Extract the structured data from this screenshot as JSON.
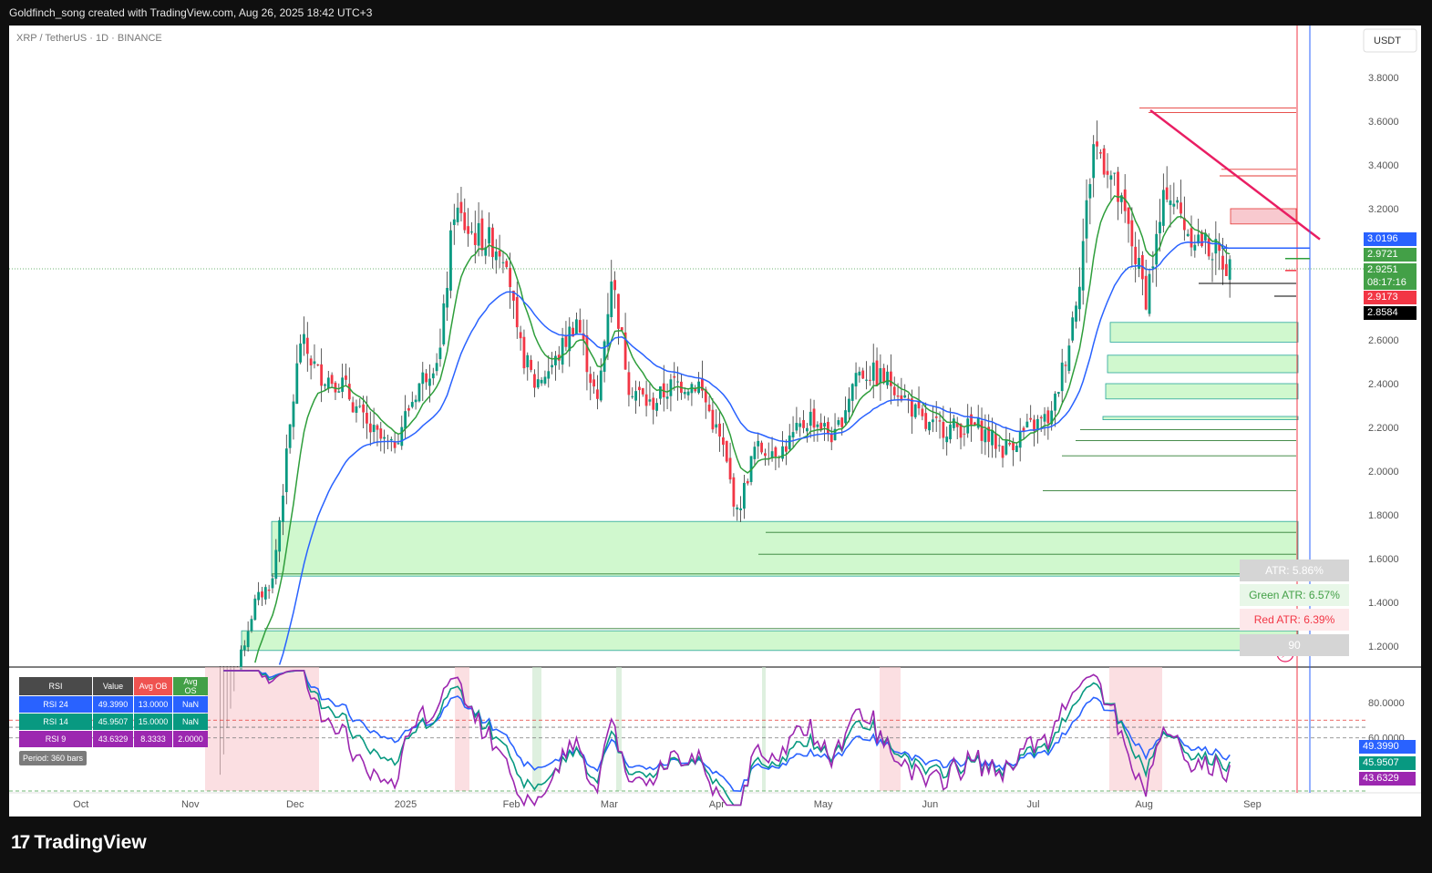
{
  "header": {
    "text": "Goldfinch_song created with TradingView.com, Aug 26, 2025 18:42 UTC+3"
  },
  "footer": {
    "brand": "TradingView",
    "logo_mark": "17"
  },
  "symbol": {
    "title": "XRP / TetherUS · 1D · BINANCE",
    "currency": "USDT"
  },
  "colors": {
    "up": "#089981",
    "down": "#f23645",
    "ma_fast": "#2e9e3b",
    "ma_slow": "#2962ff",
    "zone_fill": "#c8f7c5",
    "zone_stroke": "#26a69a",
    "trend": "#e91e63",
    "rsi24": "#2962ff",
    "rsi14": "#089981",
    "rsi9": "#9c27b0"
  },
  "price_tags": [
    {
      "label": "3.0196",
      "color": "#2962ff"
    },
    {
      "label": "2.9721",
      "color": "#43a047"
    },
    {
      "label": "2.9251",
      "color": "#43a047"
    },
    {
      "label": "08:17:16",
      "color": "#43a047"
    },
    {
      "label": "2.9173",
      "color": "#f23645"
    },
    {
      "label": "2.8584",
      "color": "#000000"
    }
  ],
  "atr": {
    "atr": "ATR: 5.86%",
    "green": "Green ATR: 6.57%",
    "red": "Red ATR: 6.39%",
    "extra": "90"
  },
  "rsi_table": {
    "headers": [
      "RSI",
      "Value",
      "Avg OB",
      "Avg OS"
    ],
    "rows": [
      {
        "name": "RSI 24",
        "value": "49.3990",
        "ob": "13.0000",
        "os": "NaN"
      },
      {
        "name": "RSI 14",
        "value": "45.9507",
        "ob": "15.0000",
        "os": "NaN"
      },
      {
        "name": "RSI 9",
        "value": "43.6329",
        "ob": "8.3333",
        "os": "2.0000"
      }
    ],
    "period": "Period: 360 bars"
  },
  "rsi_tags": [
    "49.3990",
    "45.9507",
    "43.6329"
  ],
  "chart_data": [
    {
      "type": "candlestick",
      "title": "XRP / TetherUS · 1D · BINANCE",
      "ylabel": "USDT",
      "ylim": [
        1.1,
        3.95
      ],
      "y_ticks": [
        "3.8000",
        "3.6000",
        "3.4000",
        "3.2000",
        "3.0000",
        "2.8000",
        "2.6000",
        "2.4000",
        "2.2000",
        "2.0000",
        "1.8000",
        "1.6000",
        "1.4000",
        "1.2000"
      ],
      "x_ticks": [
        "Oct",
        "Nov",
        "Dec",
        "2025",
        "Feb",
        "Mar",
        "Apr",
        "May",
        "Jun",
        "Jul",
        "Aug",
        "Sep"
      ],
      "close_approx_path": [
        [
          "2024-11-10",
          0.6
        ],
        [
          "2024-11-15",
          1.1
        ],
        [
          "2024-11-20",
          1.4
        ],
        [
          "2024-11-25",
          1.5
        ],
        [
          "2024-11-30",
          2.2
        ],
        [
          "2024-12-03",
          2.6
        ],
        [
          "2024-12-08",
          2.45
        ],
        [
          "2024-12-15",
          2.4
        ],
        [
          "2024-12-22",
          2.2
        ],
        [
          "2024-12-29",
          2.1
        ],
        [
          "2025-01-06",
          2.4
        ],
        [
          "2025-01-12",
          2.55
        ],
        [
          "2025-01-16",
          3.2
        ],
        [
          "2025-01-20",
          3.1
        ],
        [
          "2025-01-26",
          3.05
        ],
        [
          "2025-01-31",
          3.0
        ],
        [
          "2025-02-03",
          2.6
        ],
        [
          "2025-02-08",
          2.4
        ],
        [
          "2025-02-14",
          2.5
        ],
        [
          "2025-02-20",
          2.7
        ],
        [
          "2025-02-26",
          2.3
        ],
        [
          "2025-03-02",
          2.9
        ],
        [
          "2025-03-07",
          2.4
        ],
        [
          "2025-03-13",
          2.3
        ],
        [
          "2025-03-20",
          2.4
        ],
        [
          "2025-03-27",
          2.4
        ],
        [
          "2025-04-03",
          2.1
        ],
        [
          "2025-04-07",
          1.8
        ],
        [
          "2025-04-12",
          2.1
        ],
        [
          "2025-04-20",
          2.1
        ],
        [
          "2025-04-28",
          2.25
        ],
        [
          "2025-05-05",
          2.15
        ],
        [
          "2025-05-11",
          2.45
        ],
        [
          "2025-05-15",
          2.45
        ],
        [
          "2025-05-22",
          2.4
        ],
        [
          "2025-05-31",
          2.2
        ],
        [
          "2025-06-07",
          2.2
        ],
        [
          "2025-06-15",
          2.2
        ],
        [
          "2025-06-22",
          2.1
        ],
        [
          "2025-06-30",
          2.2
        ],
        [
          "2025-07-06",
          2.25
        ],
        [
          "2025-07-11",
          2.6
        ],
        [
          "2025-07-14",
          2.9
        ],
        [
          "2025-07-18",
          3.5
        ],
        [
          "2025-07-22",
          3.4
        ],
        [
          "2025-07-28",
          3.1
        ],
        [
          "2025-08-02",
          2.8
        ],
        [
          "2025-08-08",
          3.3
        ],
        [
          "2025-08-14",
          3.1
        ],
        [
          "2025-08-18",
          3.05
        ],
        [
          "2025-08-22",
          3.0
        ],
        [
          "2025-08-26",
          2.925
        ]
      ],
      "last_price": 2.9251,
      "moving_averages": [
        {
          "name": "fast",
          "last": 2.9721
        },
        {
          "name": "slow",
          "last": 3.0196
        }
      ],
      "support_zones": [
        {
          "from": 2.59,
          "to": 2.68
        },
        {
          "from": 2.45,
          "to": 2.53
        },
        {
          "from": 2.33,
          "to": 2.4
        },
        {
          "from": 2.235,
          "to": 2.25
        },
        {
          "from": 1.52,
          "to": 1.77
        },
        {
          "from": 1.18,
          "to": 1.27
        }
      ]
    },
    {
      "type": "line",
      "title": "RSI",
      "ylim": [
        20,
        100
      ],
      "y_ticks": [
        "80.0000",
        "60.0000"
      ],
      "series": [
        {
          "name": "RSI 24",
          "last": 49.399
        },
        {
          "name": "RSI 14",
          "last": 45.9507
        },
        {
          "name": "RSI 9",
          "last": 43.6329
        }
      ]
    }
  ]
}
